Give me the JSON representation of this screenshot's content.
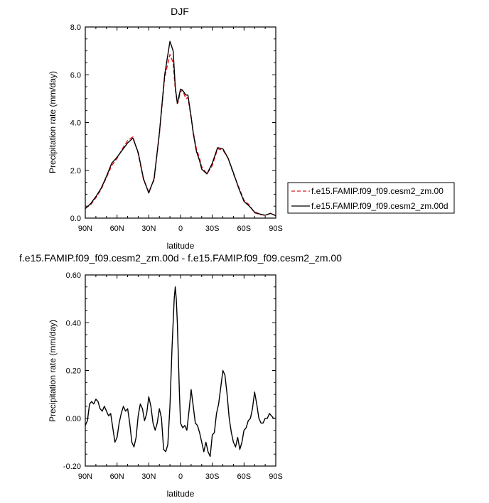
{
  "chart_data": [
    {
      "type": "line",
      "title": "DJF",
      "xlabel": "latitude",
      "ylabel": "Precipitation rate (mm/day)",
      "xlim": [
        90,
        -90
      ],
      "ylim": [
        0,
        8
      ],
      "x_ticks": [
        90,
        60,
        30,
        0,
        -30,
        -60,
        -90
      ],
      "x_tick_labels": [
        "90N",
        "60N",
        "30N",
        "0",
        "30S",
        "60S",
        "90S"
      ],
      "y_ticks": [
        0,
        2,
        4,
        6,
        8
      ],
      "y_tick_labels": [
        "0.0",
        "2.0",
        "4.0",
        "6.0",
        "8.0"
      ],
      "grid": false,
      "legend_placement": "right",
      "x": [
        90,
        85,
        80,
        75,
        70,
        65,
        60,
        55,
        50,
        45,
        40,
        35,
        30,
        25,
        20,
        15,
        10,
        7,
        5,
        3,
        2,
        0,
        -2,
        -5,
        -7,
        -10,
        -12,
        -15,
        -18,
        -20,
        -25,
        -30,
        -35,
        -40,
        -45,
        -50,
        -55,
        -60,
        -65,
        -70,
        -75,
        -80,
        -85,
        -90
      ],
      "series": [
        {
          "name": "f.e15.FAMIP.f09_f09.cesm2_zm.00",
          "color": "#e8161b",
          "dash": "dashed",
          "values": [
            0.42,
            0.55,
            0.85,
            1.2,
            1.7,
            2.2,
            2.5,
            2.9,
            3.25,
            3.4,
            2.7,
            1.6,
            1.1,
            1.6,
            3.5,
            5.9,
            6.85,
            6.5,
            5.4,
            4.8,
            4.9,
            5.3,
            5.35,
            5.0,
            5.05,
            4.2,
            3.6,
            2.9,
            2.5,
            2.15,
            1.85,
            2.2,
            2.9,
            2.85,
            2.5,
            1.85,
            1.3,
            0.75,
            0.55,
            0.22,
            0.15,
            0.12,
            0.2,
            0.1
          ]
        },
        {
          "name": "f.e15.FAMIP.f09_f09.cesm2_zm.00d",
          "color": "#000000",
          "dash": "solid",
          "values": [
            0.4,
            0.6,
            0.9,
            1.25,
            1.75,
            2.3,
            2.55,
            2.85,
            3.15,
            3.35,
            2.75,
            1.65,
            1.05,
            1.65,
            3.55,
            6.0,
            7.4,
            7.0,
            5.5,
            4.8,
            5.0,
            5.4,
            5.35,
            5.15,
            5.15,
            4.25,
            3.55,
            2.8,
            2.4,
            2.05,
            1.85,
            2.3,
            2.95,
            2.9,
            2.5,
            1.9,
            1.25,
            0.7,
            0.5,
            0.25,
            0.17,
            0.12,
            0.2,
            0.1
          ]
        }
      ]
    },
    {
      "type": "line",
      "title": "f.e15.FAMIP.f09_f09.cesm2_zm.00d - f.e15.FAMIP.f09_f09.cesm2_zm.00",
      "xlabel": "latitude",
      "ylabel": "Precipitation rate (mm/day)",
      "xlim": [
        90,
        -90
      ],
      "ylim": [
        -0.2,
        0.6
      ],
      "x_ticks": [
        90,
        60,
        30,
        0,
        -30,
        -60,
        -90
      ],
      "x_tick_labels": [
        "90N",
        "60N",
        "30N",
        "0",
        "30S",
        "60S",
        "90S"
      ],
      "y_ticks": [
        -0.2,
        0,
        0.2,
        0.4,
        0.6
      ],
      "y_tick_labels": [
        "-0.20",
        "0.00",
        "0.20",
        "0.40",
        "0.60"
      ],
      "grid": false,
      "x": [
        90,
        88,
        86,
        84,
        82,
        80,
        78,
        76,
        74,
        72,
        70,
        68,
        66,
        64,
        62,
        60,
        58,
        56,
        54,
        52,
        50,
        48,
        46,
        44,
        42,
        40,
        38,
        36,
        34,
        32,
        30,
        28,
        26,
        24,
        22,
        20,
        18,
        16,
        14,
        12,
        10,
        8,
        6,
        5,
        4,
        3,
        2,
        1,
        0,
        -2,
        -4,
        -6,
        -8,
        -10,
        -12,
        -14,
        -16,
        -18,
        -20,
        -22,
        -24,
        -26,
        -28,
        -30,
        -32,
        -34,
        -36,
        -38,
        -40,
        -42,
        -44,
        -46,
        -48,
        -50,
        -52,
        -54,
        -56,
        -58,
        -60,
        -62,
        -64,
        -66,
        -68,
        -70,
        -72,
        -74,
        -76,
        -78,
        -80,
        -82,
        -84,
        -86,
        -88,
        -90
      ],
      "series": [
        {
          "name": "",
          "color": "#000000",
          "dash": "solid",
          "values": [
            -0.03,
            -0.01,
            0.06,
            0.07,
            0.06,
            0.08,
            0.07,
            0.04,
            0.03,
            0.05,
            0.03,
            0.01,
            0.02,
            -0.04,
            -0.1,
            -0.08,
            -0.02,
            0.02,
            0.05,
            0.03,
            0.04,
            -0.02,
            -0.1,
            -0.12,
            -0.08,
            0.01,
            0.06,
            0.04,
            -0.01,
            0.02,
            0.09,
            0.05,
            -0.02,
            -0.05,
            -0.02,
            0.04,
            0.0,
            -0.13,
            -0.14,
            -0.11,
            0.05,
            0.3,
            0.5,
            0.55,
            0.5,
            0.4,
            0.25,
            0.1,
            -0.02,
            -0.04,
            -0.03,
            -0.05,
            0.03,
            0.12,
            0.05,
            -0.02,
            -0.03,
            -0.06,
            -0.1,
            -0.14,
            -0.1,
            -0.14,
            -0.16,
            -0.07,
            -0.06,
            0.02,
            0.06,
            0.13,
            0.2,
            0.18,
            0.1,
            0.0,
            -0.06,
            -0.1,
            -0.12,
            -0.08,
            -0.13,
            -0.1,
            -0.05,
            -0.04,
            -0.01,
            0.0,
            0.04,
            0.11,
            0.06,
            0.0,
            -0.02,
            -0.02,
            0.0,
            0.0,
            0.02,
            0.01,
            0.0,
            0.0
          ]
        }
      ]
    }
  ]
}
